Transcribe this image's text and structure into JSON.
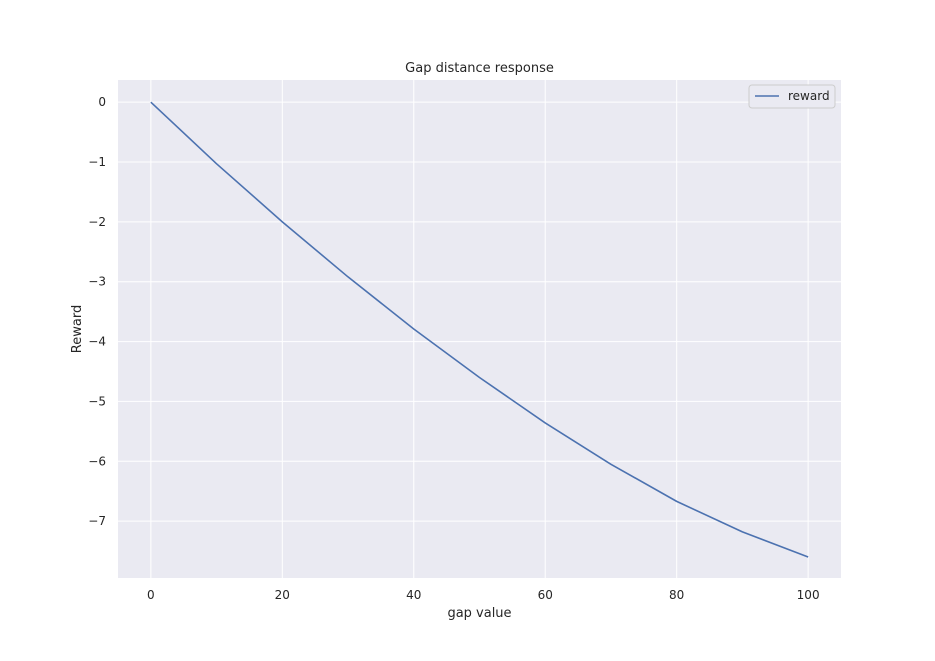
{
  "chart_data": {
    "type": "line",
    "title": "Gap distance response",
    "xlabel": "gap value",
    "ylabel": "Reward",
    "xlim": [
      -5,
      105
    ],
    "ylim": [
      -7.95,
      0.37
    ],
    "xticks": [
      0,
      20,
      40,
      60,
      80,
      100
    ],
    "yticks": [
      0,
      -1,
      -2,
      -3,
      -4,
      -5,
      -6,
      -7
    ],
    "xtick_labels": [
      "0",
      "20",
      "40",
      "60",
      "80",
      "100"
    ],
    "ytick_labels": [
      "0",
      "−1",
      "−2",
      "−3",
      "−4",
      "−5",
      "−6",
      "−7"
    ],
    "grid": true,
    "legend_position": "top-right",
    "series": [
      {
        "name": "reward",
        "color": "#4c72b0",
        "x": [
          0,
          10,
          20,
          30,
          40,
          50,
          60,
          70,
          80,
          90,
          100
        ],
        "y": [
          0,
          -1.03,
          -2.0,
          -2.92,
          -3.79,
          -4.6,
          -5.36,
          -6.05,
          -6.67,
          -7.18,
          -7.6
        ]
      }
    ]
  },
  "colors": {
    "plot_background": "#eaeaf2",
    "grid": "#ffffff",
    "legend_background": "#eaeaf2",
    "legend_border": "#cccccc"
  }
}
